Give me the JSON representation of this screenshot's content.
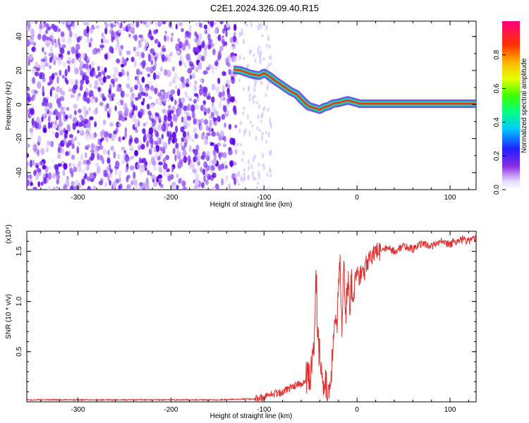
{
  "chart_data": [
    {
      "type": "heatmap",
      "title": "C2E1.2024.326.09.40.R15",
      "xlabel": "Height of straight line (km)",
      "ylabel": "Frequency (Hz)",
      "xlim": [
        -355,
        128
      ],
      "ylim": [
        -50,
        49
      ],
      "xticks": [
        "-300",
        "-200",
        "-100",
        "0",
        "100"
      ],
      "yticks": [
        "-40",
        "-20",
        "0",
        "20",
        "40"
      ],
      "colorbar": {
        "label": "Normalized spectral amplitude",
        "range": [
          0,
          1
        ],
        "ticks": [
          "0.0",
          "0.2",
          "0.4",
          "0.6",
          "0.8"
        ]
      },
      "track": {
        "x": [
          -133,
          -125,
          -115,
          -105,
          -100,
          -95,
          -88,
          -80,
          -72,
          -65,
          -58,
          -52,
          -46,
          -40,
          -35,
          -31,
          -26,
          -20,
          -10,
          0,
          3,
          128
        ],
        "y": [
          20.5,
          20,
          18,
          17,
          18.5,
          17,
          14,
          11,
          8,
          6,
          2,
          -1,
          -2,
          -3,
          -1.5,
          -1,
          0.5,
          1,
          2.5,
          1,
          0.5,
          0.5
        ]
      }
    },
    {
      "type": "line",
      "xlabel": "Height of straight line (km)",
      "ylabel": "SNR (10 * v/v)",
      "y_multiplier": "(x10⁴)",
      "xlim": [
        -355,
        128
      ],
      "ylim": [
        0,
        1.7
      ],
      "xticks": [
        "-300",
        "-200",
        "-100",
        "0",
        "100"
      ],
      "yticks": [
        "0.5",
        "1.0",
        "1.5"
      ],
      "color": "#e03030",
      "series": [
        {
          "x": [
            -355,
            -250,
            -150,
            -110,
            -100,
            -90,
            -80,
            -70,
            -60,
            -55,
            -50,
            -46,
            -44,
            -42,
            -40,
            -38,
            -36,
            -34,
            -32,
            -30,
            -28,
            -26,
            -24,
            -22,
            -20,
            -18,
            -17,
            -16,
            -14,
            -12,
            -10,
            -8,
            -6,
            -4,
            -2,
            0,
            2,
            4,
            6,
            8,
            10,
            12,
            15,
            20,
            25,
            30,
            40,
            50,
            60,
            70,
            80,
            90,
            100,
            110,
            120,
            128
          ],
          "y": [
            0.02,
            0.02,
            0.02,
            0.03,
            0.05,
            0.08,
            0.1,
            0.15,
            0.18,
            0.22,
            0.3,
            0.5,
            1.3,
            0.6,
            0.45,
            0.3,
            0.2,
            0.15,
            0.1,
            0.12,
            0.3,
            0.5,
            0.9,
            0.6,
            1.05,
            1.38,
            1.0,
            0.75,
            1.35,
            0.9,
            1.25,
            1.0,
            1.2,
            1.15,
            1.25,
            1.3,
            1.2,
            1.28,
            1.35,
            1.3,
            1.4,
            1.38,
            1.45,
            1.52,
            1.48,
            1.53,
            1.5,
            1.55,
            1.52,
            1.58,
            1.55,
            1.6,
            1.57,
            1.62,
            1.6,
            1.63
          ]
        }
      ]
    }
  ]
}
